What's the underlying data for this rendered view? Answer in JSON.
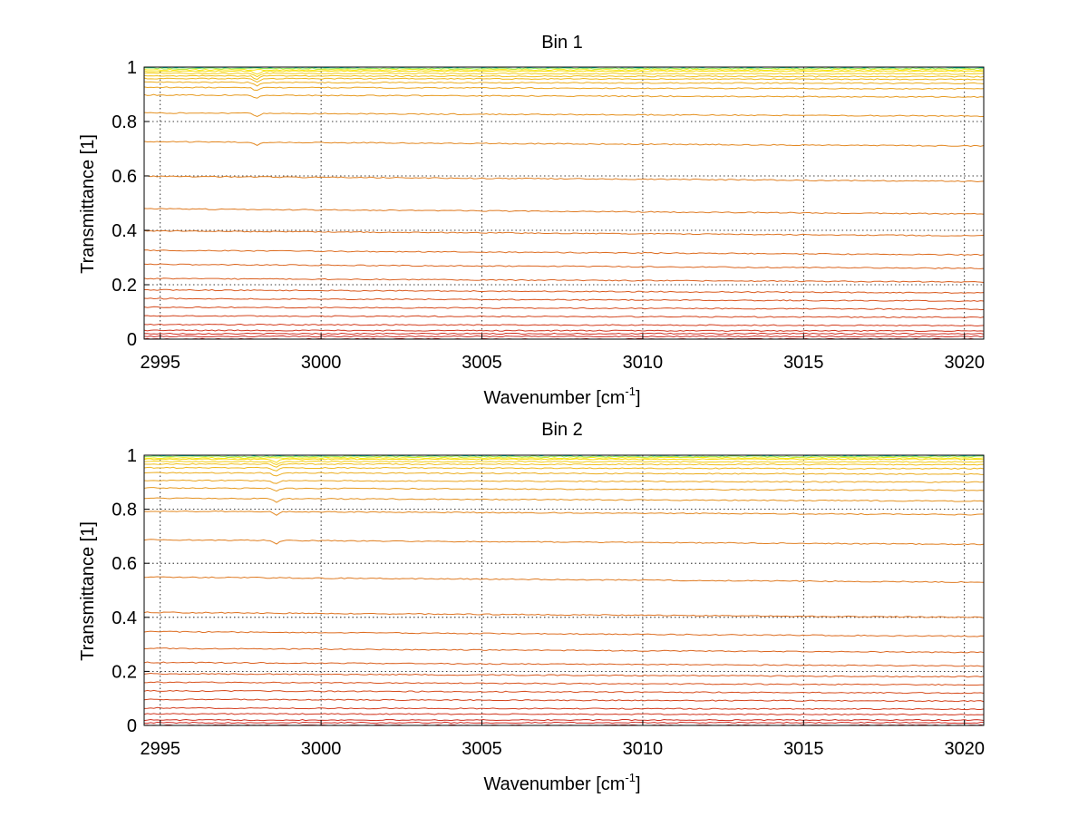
{
  "chart_data": [
    {
      "type": "line",
      "title": "Bin 1",
      "xlabel": "Wavenumber [cm",
      "xlabel_sup": "-1",
      "xlabel_end": "]",
      "ylabel": "Transmittance [1]",
      "xlim": [
        2994.5,
        3020.6
      ],
      "ylim": [
        0,
        1
      ],
      "xticks": [
        2995,
        3000,
        3005,
        3010,
        3015,
        3020
      ],
      "yticks": [
        0,
        0.2,
        0.4,
        0.6,
        0.8,
        1
      ],
      "grid": true,
      "legend": "none",
      "colormap": "autumn-to-jet (red → orange → yellow → cyan)",
      "series_color_start": "#cc1f1f",
      "series_color_end": "#00d5c0",
      "series_levels": [
        0.0,
        0.01,
        0.02,
        0.03,
        0.05,
        0.08,
        0.11,
        0.14,
        0.17,
        0.21,
        0.26,
        0.31,
        0.38,
        0.46,
        0.58,
        0.71,
        0.82,
        0.89,
        0.92,
        0.94,
        0.955,
        0.965,
        0.975,
        0.985,
        0.99,
        0.995,
        1.0
      ]
    },
    {
      "type": "line",
      "title": "Bin 2",
      "xlabel": "Wavenumber [cm",
      "xlabel_sup": "-1",
      "xlabel_end": "]",
      "ylabel": "Transmittance [1]",
      "xlim": [
        2994.5,
        3020.6
      ],
      "ylim": [
        0,
        1
      ],
      "xticks": [
        2995,
        3000,
        3005,
        3010,
        3015,
        3020
      ],
      "yticks": [
        0,
        0.2,
        0.4,
        0.6,
        0.8,
        1
      ],
      "grid": true,
      "legend": "none",
      "colormap": "autumn-to-jet (red → orange → yellow → cyan)",
      "series_color_start": "#cc1f1f",
      "series_color_end": "#00d5c0",
      "series_levels": [
        0.0,
        0.01,
        0.02,
        0.04,
        0.06,
        0.09,
        0.12,
        0.15,
        0.18,
        0.22,
        0.27,
        0.33,
        0.4,
        0.53,
        0.67,
        0.78,
        0.83,
        0.87,
        0.9,
        0.93,
        0.95,
        0.965,
        0.975,
        0.985,
        0.99,
        0.995,
        1.0
      ]
    }
  ]
}
